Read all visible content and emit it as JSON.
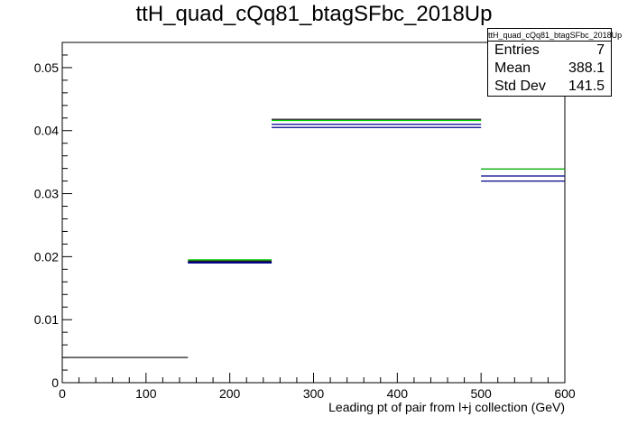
{
  "chart_data": {
    "type": "histogram",
    "title": "ttH_quad_cQq81_btagSFbc_2018Up",
    "xlabel": "Leading pt of pair from l+j collection (GeV)",
    "ylabel": "",
    "xlim": [
      0,
      600
    ],
    "ylim": [
      0,
      0.054
    ],
    "x_ticks": [
      "0",
      "100",
      "200",
      "300",
      "400",
      "500",
      "600"
    ],
    "y_ticks": [
      "0",
      "0.01",
      "0.02",
      "0.03",
      "0.04",
      "0.05"
    ],
    "grid": false,
    "series": [
      {
        "color": "#000000",
        "bins": [
          [
            0,
            150
          ],
          [
            150,
            250
          ],
          [
            250,
            500
          ],
          [
            500,
            600
          ]
        ],
        "values": [
          0.004,
          0.0193,
          0.0418,
          0.0339
        ]
      },
      {
        "color": "#00cc00",
        "bins": [
          [
            150,
            250
          ],
          [
            250,
            500
          ],
          [
            500,
            600
          ]
        ],
        "values": [
          0.0195,
          0.0416,
          0.0339
        ]
      },
      {
        "color": "#00008b",
        "bins": [
          [
            150,
            250
          ],
          [
            250,
            500
          ],
          [
            500,
            600
          ]
        ],
        "values": [
          0.019,
          0.0405,
          0.032
        ]
      },
      {
        "color": "#00008b",
        "bins": [
          [
            150,
            250
          ],
          [
            250,
            500
          ],
          [
            500,
            600
          ]
        ],
        "values": [
          0.0191,
          0.041,
          0.0328
        ]
      }
    ]
  },
  "stats": {
    "name": "ttH_quad_cQq81_btagSFbc_2018Up",
    "rows": [
      {
        "label": "Entries",
        "value": "7"
      },
      {
        "label": "Mean",
        "value": "388.1"
      },
      {
        "label": "Std Dev",
        "value": "141.5"
      }
    ]
  }
}
